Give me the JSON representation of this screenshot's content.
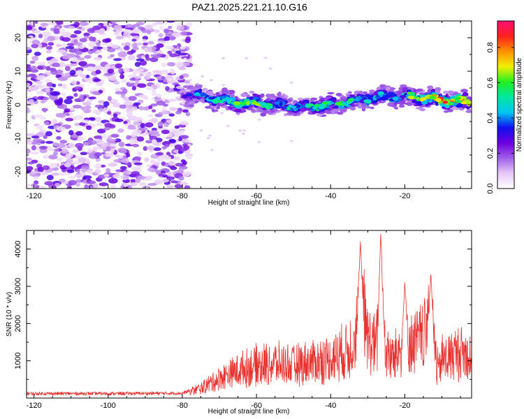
{
  "title": "PAZ1.2025.221.21.10.G16",
  "chart_data": [
    {
      "type": "heatmap",
      "name": "spectrogram",
      "xlabel": "Height of straight line (km)",
      "ylabel": "Frequency (Hz)",
      "xlim": [
        -122,
        -2
      ],
      "ylim": [
        -25,
        25
      ],
      "xticks": [
        -120,
        -100,
        -80,
        -60,
        -40,
        -20
      ],
      "yticks": [
        -20,
        -10,
        0,
        10,
        20
      ],
      "colorbar": {
        "label": "Normalized spectral amplitude",
        "range": [
          0,
          0.95
        ],
        "ticks": [
          0.0,
          0.2,
          0.4,
          0.6,
          0.8
        ],
        "colors": [
          "#ffffff",
          "#e6c8f8",
          "#a060e8",
          "#6a00e0",
          "#1010f0",
          "#00c8f0",
          "#00e8a0",
          "#20f020",
          "#f0f000",
          "#ff9000",
          "#ff2020",
          "#ff1070"
        ]
      },
      "noise_region": {
        "x": [
          -122,
          -78
        ],
        "amplitude": [
          0.05,
          0.3
        ]
      },
      "signal_ridge": {
        "x": [
          -80,
          -75,
          -70,
          -65,
          -60,
          -55,
          -50,
          -45,
          -40,
          -35,
          -30,
          -25,
          -20,
          -15,
          -10,
          -5,
          -2
        ],
        "frequency": [
          3.5,
          2.5,
          1.5,
          0.5,
          0.5,
          0.0,
          -0.5,
          -0.5,
          0.0,
          1.0,
          2.0,
          2.5,
          2.5,
          2.0,
          1.5,
          1.0,
          1.0
        ],
        "amplitude": [
          0.25,
          0.45,
          0.5,
          0.6,
          0.6,
          0.5,
          0.5,
          0.55,
          0.55,
          0.55,
          0.5,
          0.45,
          0.6,
          0.65,
          0.85,
          0.8,
          0.7
        ]
      }
    },
    {
      "type": "line",
      "name": "snr",
      "xlabel": "Height of straight line (km)",
      "ylabel": "SNR (10 * v/v)",
      "xlim": [
        -122,
        -2
      ],
      "ylim": [
        0,
        4500
      ],
      "xticks": [
        -120,
        -100,
        -80,
        -60,
        -40,
        -20
      ],
      "yticks": [
        1000,
        2000,
        3000,
        4000
      ],
      "color": "#e8312e",
      "envelope": {
        "x": [
          -122,
          -100,
          -80,
          -75,
          -70,
          -65,
          -60,
          -55,
          -50,
          -45,
          -40,
          -35,
          -33,
          -31,
          -30,
          -28,
          -26,
          -25,
          -23,
          -20,
          -18,
          -15,
          -13,
          -11,
          -10,
          -5,
          -2
        ],
        "y": [
          120,
          120,
          130,
          300,
          600,
          850,
          1000,
          1050,
          1000,
          1100,
          1200,
          1500,
          2200,
          2500,
          1800,
          1600,
          2300,
          1400,
          1200,
          1800,
          1600,
          1900,
          2300,
          800,
          1200,
          1400,
          1300
        ]
      },
      "peaks": [
        {
          "x": -32,
          "y": 4200
        },
        {
          "x": -26.5,
          "y": 4450
        },
        {
          "x": -20,
          "y": 3100
        },
        {
          "x": -13,
          "y": 3350
        }
      ]
    }
  ]
}
